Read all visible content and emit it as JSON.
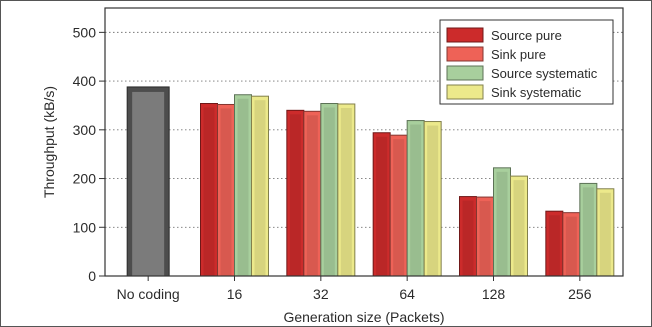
{
  "chart_data": {
    "type": "bar",
    "xlabel": "Generation size (Packets)",
    "ylabel": "Throughput (kB/s)",
    "ylim": [
      0,
      550
    ],
    "yticks": [
      0,
      100,
      200,
      300,
      400,
      500
    ],
    "grid": "horizontal dotted",
    "legend_position": "top-right",
    "categories": [
      "No coding",
      "16",
      "32",
      "64",
      "128",
      "256"
    ],
    "baseline": {
      "category": "No coding",
      "value": 388,
      "color": "#4d4d4d"
    },
    "series": [
      {
        "name": "Source pure",
        "color": "#cc2b2b",
        "values": [
          null,
          354,
          340,
          294,
          163,
          133
        ]
      },
      {
        "name": "Sink pure",
        "color": "#ee6257",
        "values": [
          null,
          352,
          338,
          289,
          162,
          130
        ]
      },
      {
        "name": "Source systematic",
        "color": "#a8cf9d",
        "values": [
          null,
          372,
          354,
          319,
          222,
          190
        ]
      },
      {
        "name": "Sink systematic",
        "color": "#ece98b",
        "values": [
          null,
          369,
          353,
          317,
          205,
          179
        ]
      }
    ]
  }
}
